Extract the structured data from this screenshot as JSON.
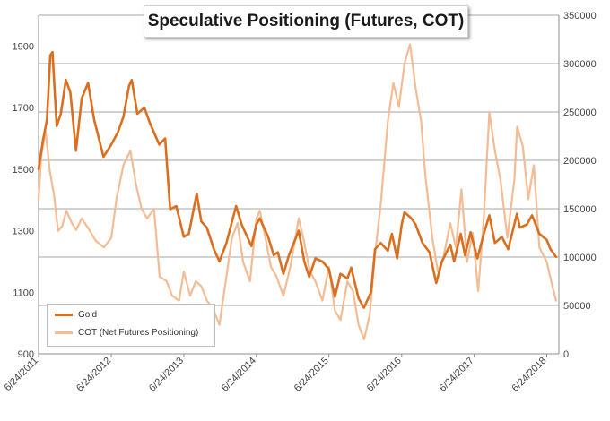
{
  "chart_data": {
    "type": "line",
    "title": "Speculative Positioning (Futures, COT)",
    "xlabel": "",
    "ylabel": "",
    "x_ticks": [
      "6/24/2011",
      "6/24/2012",
      "6/24/2013",
      "6/24/2014",
      "6/24/2015",
      "6/24/2016",
      "6/24/2017",
      "6/24/2018"
    ],
    "x_range": [
      "2011-06-24",
      "2018-08-24"
    ],
    "y_left": {
      "ylim": [
        900,
        2000
      ],
      "ticks": [
        900,
        1100,
        1300,
        1500,
        1700,
        1900
      ]
    },
    "y_right": {
      "ylim": [
        0,
        350000
      ],
      "ticks": [
        0,
        50000,
        100000,
        150000,
        200000,
        250000,
        300000,
        350000
      ]
    },
    "grid": true,
    "legend_position": "bottom-left",
    "series": [
      {
        "name": "Gold",
        "axis": "left",
        "color": "#D96F1F",
        "points": [
          [
            "2011-06-24",
            1500
          ],
          [
            "2011-07-15",
            1590
          ],
          [
            "2011-08-05",
            1660
          ],
          [
            "2011-08-22",
            1870
          ],
          [
            "2011-09-02",
            1880
          ],
          [
            "2011-09-23",
            1640
          ],
          [
            "2011-10-14",
            1680
          ],
          [
            "2011-11-08",
            1790
          ],
          [
            "2011-12-01",
            1750
          ],
          [
            "2011-12-29",
            1560
          ],
          [
            "2012-01-27",
            1730
          ],
          [
            "2012-02-28",
            1780
          ],
          [
            "2012-03-30",
            1660
          ],
          [
            "2012-05-16",
            1540
          ],
          [
            "2012-06-24",
            1580
          ],
          [
            "2012-07-27",
            1620
          ],
          [
            "2012-08-24",
            1670
          ],
          [
            "2012-09-21",
            1770
          ],
          [
            "2012-10-05",
            1790
          ],
          [
            "2012-11-02",
            1680
          ],
          [
            "2012-12-07",
            1700
          ],
          [
            "2013-01-04",
            1650
          ],
          [
            "2013-02-20",
            1580
          ],
          [
            "2013-03-22",
            1600
          ],
          [
            "2013-04-16",
            1370
          ],
          [
            "2013-05-17",
            1380
          ],
          [
            "2013-06-24",
            1280
          ],
          [
            "2013-07-19",
            1290
          ],
          [
            "2013-08-28",
            1420
          ],
          [
            "2013-09-20",
            1330
          ],
          [
            "2013-10-18",
            1310
          ],
          [
            "2013-11-22",
            1240
          ],
          [
            "2013-12-20",
            1200
          ],
          [
            "2014-01-24",
            1260
          ],
          [
            "2014-03-14",
            1380
          ],
          [
            "2014-04-11",
            1320
          ],
          [
            "2014-05-30",
            1250
          ],
          [
            "2014-06-24",
            1320
          ],
          [
            "2014-07-11",
            1340
          ],
          [
            "2014-08-22",
            1280
          ],
          [
            "2014-09-19",
            1220
          ],
          [
            "2014-10-10",
            1230
          ],
          [
            "2014-11-07",
            1160
          ],
          [
            "2014-12-05",
            1220
          ],
          [
            "2015-01-23",
            1300
          ],
          [
            "2015-02-20",
            1200
          ],
          [
            "2015-03-17",
            1150
          ],
          [
            "2015-04-17",
            1210
          ],
          [
            "2015-05-22",
            1200
          ],
          [
            "2015-06-24",
            1175
          ],
          [
            "2015-07-24",
            1085
          ],
          [
            "2015-08-21",
            1160
          ],
          [
            "2015-09-25",
            1145
          ],
          [
            "2015-10-14",
            1180
          ],
          [
            "2015-11-20",
            1080
          ],
          [
            "2015-12-17",
            1050
          ],
          [
            "2016-01-22",
            1100
          ],
          [
            "2016-02-11",
            1240
          ],
          [
            "2016-03-11",
            1260
          ],
          [
            "2016-04-15",
            1235
          ],
          [
            "2016-05-06",
            1290
          ],
          [
            "2016-06-01",
            1210
          ],
          [
            "2016-06-24",
            1320
          ],
          [
            "2016-07-08",
            1360
          ],
          [
            "2016-08-12",
            1340
          ],
          [
            "2016-09-02",
            1320
          ],
          [
            "2016-10-07",
            1260
          ],
          [
            "2016-11-11",
            1230
          ],
          [
            "2016-12-15",
            1130
          ],
          [
            "2017-01-13",
            1200
          ],
          [
            "2017-02-24",
            1255
          ],
          [
            "2017-03-15",
            1200
          ],
          [
            "2017-04-17",
            1290
          ],
          [
            "2017-05-09",
            1220
          ],
          [
            "2017-06-06",
            1295
          ],
          [
            "2017-07-10",
            1210
          ],
          [
            "2017-08-11",
            1290
          ],
          [
            "2017-09-08",
            1350
          ],
          [
            "2017-10-06",
            1260
          ],
          [
            "2017-11-10",
            1280
          ],
          [
            "2017-12-12",
            1240
          ],
          [
            "2018-01-25",
            1355
          ],
          [
            "2018-02-09",
            1310
          ],
          [
            "2018-03-16",
            1320
          ],
          [
            "2018-04-11",
            1350
          ],
          [
            "2018-05-18",
            1290
          ],
          [
            "2018-06-24",
            1270
          ],
          [
            "2018-07-13",
            1240
          ],
          [
            "2018-08-10",
            1215
          ]
        ]
      },
      {
        "name": "COT (Net Futures Positioning)",
        "axis": "right",
        "color": "#F4BC94",
        "points": [
          [
            "2011-06-24",
            160000
          ],
          [
            "2011-07-08",
            205000
          ],
          [
            "2011-07-29",
            230000
          ],
          [
            "2011-08-19",
            190000
          ],
          [
            "2011-09-09",
            165000
          ],
          [
            "2011-09-30",
            127000
          ],
          [
            "2011-10-21",
            132000
          ],
          [
            "2011-11-11",
            148000
          ],
          [
            "2011-12-09",
            135000
          ],
          [
            "2011-12-30",
            128000
          ],
          [
            "2012-01-27",
            140000
          ],
          [
            "2012-02-28",
            130000
          ],
          [
            "2012-04-06",
            117000
          ],
          [
            "2012-05-18",
            110000
          ],
          [
            "2012-06-24",
            120000
          ],
          [
            "2012-07-20",
            160000
          ],
          [
            "2012-08-24",
            195000
          ],
          [
            "2012-09-28",
            210000
          ],
          [
            "2012-10-26",
            175000
          ],
          [
            "2012-11-23",
            150000
          ],
          [
            "2012-12-21",
            140000
          ],
          [
            "2013-01-25",
            150000
          ],
          [
            "2013-02-22",
            80000
          ],
          [
            "2013-03-29",
            75000
          ],
          [
            "2013-04-26",
            60000
          ],
          [
            "2013-05-31",
            55000
          ],
          [
            "2013-06-24",
            85000
          ],
          [
            "2013-07-26",
            60000
          ],
          [
            "2013-08-23",
            75000
          ],
          [
            "2013-09-20",
            70000
          ],
          [
            "2013-10-18",
            55000
          ],
          [
            "2013-11-15",
            48000
          ],
          [
            "2013-12-20",
            30000
          ],
          [
            "2014-01-24",
            80000
          ],
          [
            "2014-02-21",
            120000
          ],
          [
            "2014-03-21",
            135000
          ],
          [
            "2014-04-18",
            95000
          ],
          [
            "2014-05-23",
            75000
          ],
          [
            "2014-06-24",
            140000
          ],
          [
            "2014-07-11",
            148000
          ],
          [
            "2014-08-08",
            120000
          ],
          [
            "2014-09-05",
            90000
          ],
          [
            "2014-10-03",
            80000
          ],
          [
            "2014-11-07",
            60000
          ],
          [
            "2014-12-12",
            90000
          ],
          [
            "2015-01-23",
            140000
          ],
          [
            "2015-02-20",
            115000
          ],
          [
            "2015-03-20",
            85000
          ],
          [
            "2015-04-17",
            75000
          ],
          [
            "2015-05-22",
            55000
          ],
          [
            "2015-06-24",
            90000
          ],
          [
            "2015-07-24",
            45000
          ],
          [
            "2015-08-21",
            35000
          ],
          [
            "2015-09-25",
            75000
          ],
          [
            "2015-10-23",
            65000
          ],
          [
            "2015-11-20",
            30000
          ],
          [
            "2015-12-18",
            15000
          ],
          [
            "2016-01-15",
            40000
          ],
          [
            "2016-02-12",
            105000
          ],
          [
            "2016-03-11",
            155000
          ],
          [
            "2016-04-15",
            240000
          ],
          [
            "2016-05-13",
            280000
          ],
          [
            "2016-06-10",
            255000
          ],
          [
            "2016-07-08",
            300000
          ],
          [
            "2016-08-05",
            320000
          ],
          [
            "2016-09-02",
            275000
          ],
          [
            "2016-09-30",
            240000
          ],
          [
            "2016-10-21",
            185000
          ],
          [
            "2016-11-25",
            120000
          ],
          [
            "2016-12-23",
            85000
          ],
          [
            "2017-01-20",
            100000
          ],
          [
            "2017-02-24",
            135000
          ],
          [
            "2017-03-24",
            110000
          ],
          [
            "2017-04-21",
            170000
          ],
          [
            "2017-05-19",
            95000
          ],
          [
            "2017-06-16",
            125000
          ],
          [
            "2017-07-14",
            65000
          ],
          [
            "2017-08-11",
            140000
          ],
          [
            "2017-09-08",
            250000
          ],
          [
            "2017-10-06",
            210000
          ],
          [
            "2017-11-03",
            180000
          ],
          [
            "2017-12-08",
            120000
          ],
          [
            "2018-01-12",
            180000
          ],
          [
            "2018-01-26",
            235000
          ],
          [
            "2018-02-23",
            215000
          ],
          [
            "2018-03-23",
            160000
          ],
          [
            "2018-04-20",
            195000
          ],
          [
            "2018-05-18",
            110000
          ],
          [
            "2018-06-24",
            95000
          ],
          [
            "2018-07-20",
            72000
          ],
          [
            "2018-08-10",
            55000
          ]
        ]
      }
    ]
  }
}
